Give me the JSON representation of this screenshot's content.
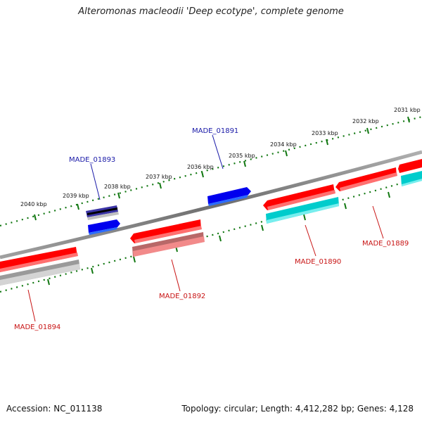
{
  "title": "Alteromonas macleodii 'Deep ecotype', complete genome",
  "footer": {
    "accession": "Accession: NC_011138",
    "summary": "Topology: circular; Length: 4,412,282 bp; Genes: 4,128"
  },
  "ticks": [
    "2031 kbp",
    "2032 kbp",
    "2033 kbp",
    "2034 kbp",
    "2035 kbp",
    "2036 kbp",
    "2037 kbp",
    "2038 kbp",
    "2039 kbp",
    "2040 kbp"
  ],
  "genes": [
    "MADE_01889",
    "MADE_01890",
    "MADE_01891",
    "MADE_01892",
    "MADE_01893",
    "MADE_01894"
  ],
  "colors": {
    "forward": "#ff0000",
    "reverse_light": "#f28a8a",
    "cyan": "#00cccc",
    "blue": "#0000ee",
    "grey": "#bbbbbb",
    "backbone": "#888888",
    "tick": "#117711"
  }
}
